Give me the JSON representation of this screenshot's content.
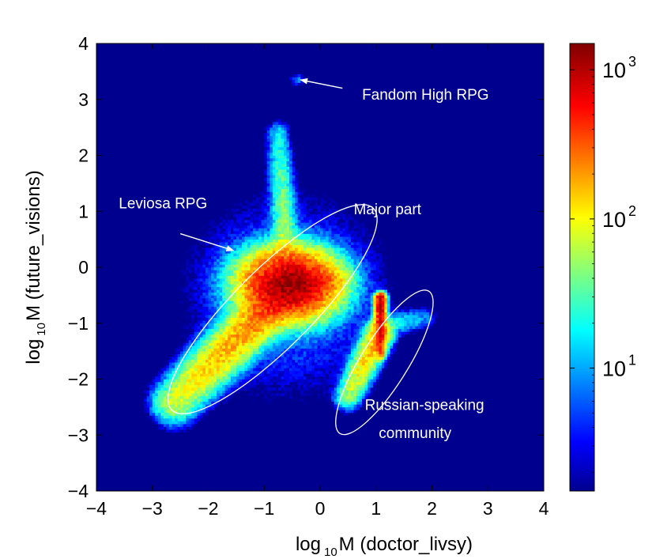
{
  "chart_data": {
    "type": "heatmap",
    "title": "",
    "xlabel": {
      "prefix": "log",
      "sub": "10",
      "text": "M (doctor_livsy)"
    },
    "ylabel": {
      "prefix": "log",
      "sub": "10",
      "text": "M (future_visions)"
    },
    "xlim": [
      -4,
      4
    ],
    "ylim": [
      -4,
      4
    ],
    "xticks": [
      -4,
      -3,
      -2,
      -1,
      0,
      1,
      2,
      3,
      4
    ],
    "yticks": [
      -4,
      -3,
      -2,
      -1,
      0,
      1,
      2,
      3,
      4
    ],
    "xtick_labels": [
      "−4",
      "−3",
      "−2",
      "−1",
      "0",
      "1",
      "2",
      "3",
      "4"
    ],
    "ytick_labels": [
      "−4",
      "−3",
      "−2",
      "−1",
      "0",
      "1",
      "2",
      "3",
      "4"
    ],
    "colorbar": {
      "scale": "log",
      "range": [
        1.5,
        1500
      ],
      "ticks": [
        {
          "value": 10,
          "base": "10",
          "exp": "1"
        },
        {
          "value": 100,
          "base": "10",
          "exp": "2"
        },
        {
          "value": 1000,
          "base": "10",
          "exp": "3"
        }
      ],
      "colormap": "jet"
    },
    "density_components": [
      {
        "region": "main-lobe",
        "center": [
          -0.55,
          -0.3
        ],
        "peak": 1000
      },
      {
        "region": "main-diagonal-tail",
        "from": [
          -0.5,
          -0.3
        ],
        "to": [
          -2.6,
          -2.4
        ],
        "peak": 300
      },
      {
        "region": "main-right-branch",
        "from": [
          -0.3,
          -0.3
        ],
        "to": [
          0.4,
          -0.25
        ],
        "peak": 150
      },
      {
        "region": "spike-up",
        "from": [
          -0.6,
          0.2
        ],
        "to": [
          -0.75,
          2.4
        ],
        "peak": 60
      },
      {
        "region": "russian-vertical-streak",
        "from": [
          1.08,
          -0.55
        ],
        "to": [
          1.08,
          -1.55
        ],
        "peak": 1000
      },
      {
        "region": "russian-tail",
        "from": [
          1.05,
          -1.2
        ],
        "to": [
          0.5,
          -2.3
        ],
        "peak": 200
      },
      {
        "region": "russian-horizontal",
        "from": [
          1.05,
          -1.05
        ],
        "to": [
          1.9,
          -0.9
        ],
        "peak": 30
      },
      {
        "region": "fandom-high-cluster",
        "center": [
          -0.4,
          3.35
        ],
        "peak": 8
      }
    ],
    "annotations": [
      {
        "text": "Fandom High RPG",
        "text_at": [
          0.75,
          3.0
        ],
        "arrow_from": [
          0.4,
          3.2
        ],
        "arrow_to": [
          -0.35,
          3.35
        ]
      },
      {
        "text": "Leviosa RPG",
        "text_at": [
          -3.6,
          1.05
        ],
        "arrow_from": [
          -2.5,
          0.6
        ],
        "arrow_to": [
          -1.55,
          0.3
        ]
      },
      {
        "text": "Major part",
        "text_at": [
          0.6,
          0.95
        ]
      },
      {
        "text": "Russian-speaking",
        "text_at": [
          0.8,
          -2.55
        ]
      },
      {
        "text": "community",
        "text_at": [
          1.05,
          -3.05
        ]
      }
    ],
    "regions": [
      {
        "name": "major-part-contour",
        "center": [
          -0.85,
          -0.75
        ],
        "rx_deg": 2.55,
        "ry_deg": 0.7,
        "angle": -45
      },
      {
        "name": "russian-contour",
        "center": [
          1.15,
          -1.7
        ],
        "rx_deg": 1.5,
        "ry_deg": 0.42,
        "angle": -58
      }
    ],
    "grid": false
  }
}
